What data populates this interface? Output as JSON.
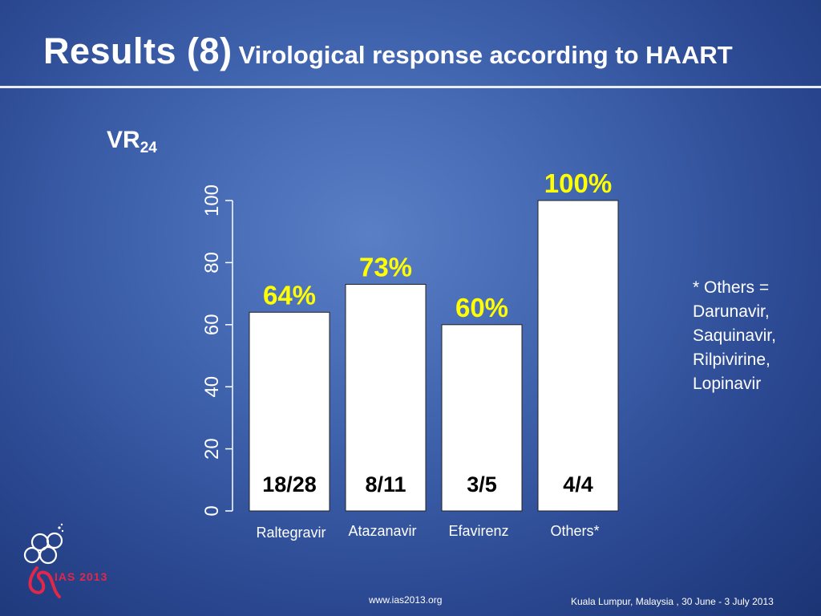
{
  "slide": {
    "title": "Results (8)",
    "subtitle": "Virological response according to HAART",
    "metric_label": "VR",
    "metric_subscript": "24",
    "footnote_lines": [
      "* Others =",
      "Darunavir,",
      "Saquinavir,",
      "Rilpivirine,",
      "Lopinavir"
    ],
    "footer_url": "www.ias2013.org",
    "footer_venue": "Kuala Lumpur, Malaysia , 30 June - 3 July 2013",
    "logo_text": "IAS 2013"
  },
  "colors": {
    "background": "#3f62ad",
    "bar_fill": "#ffffff",
    "percent_label": "#ffff00",
    "logo_red": "#e0284a"
  },
  "chart_data": {
    "type": "bar",
    "categories": [
      "Raltegravir",
      "Atazanavir",
      "Efavirenz",
      "Others*"
    ],
    "values": [
      64,
      73,
      60,
      100
    ],
    "percent_labels": [
      "64%",
      "73%",
      "60%",
      "100%"
    ],
    "count_labels": [
      "18/28",
      "8/11",
      "3/5",
      "4/4"
    ],
    "yticks": [
      0,
      20,
      40,
      60,
      80,
      100
    ],
    "ylim": [
      0,
      100
    ],
    "title": "",
    "xlabel": "",
    "ylabel": ""
  }
}
